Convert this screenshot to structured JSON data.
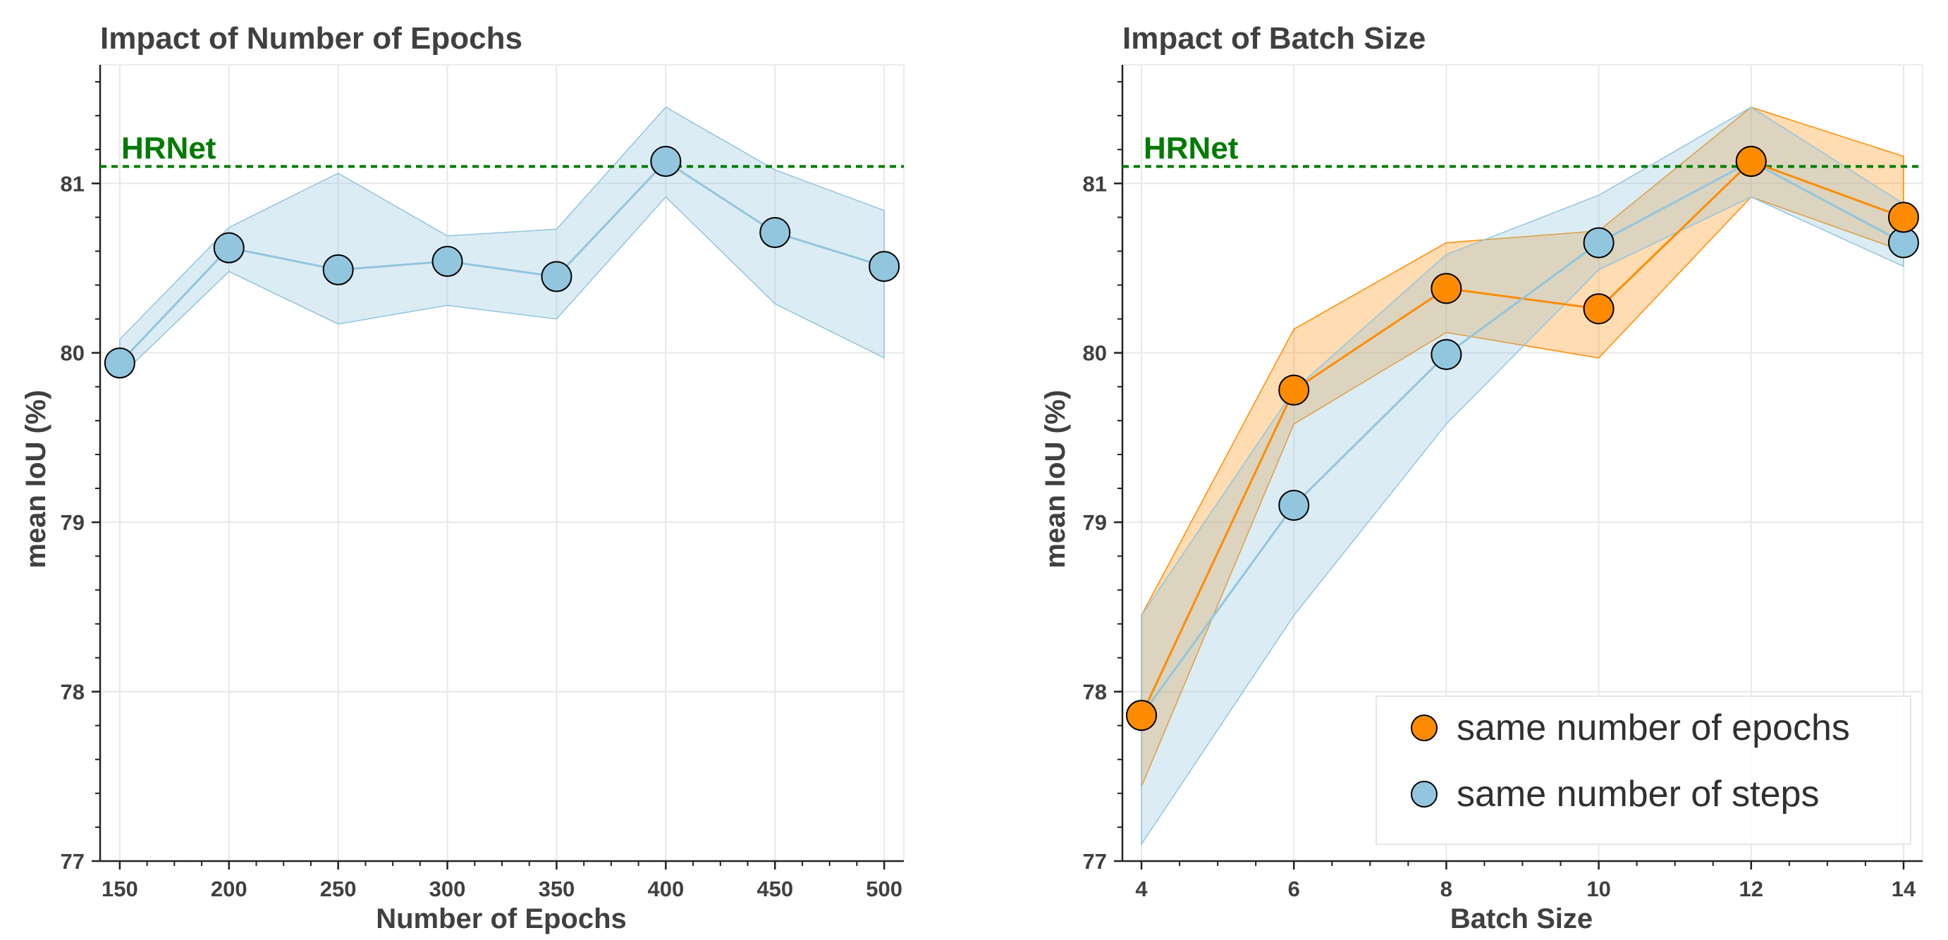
{
  "chart_data": [
    {
      "type": "line",
      "title": "Impact of Number of Epochs",
      "xlabel": "Number of Epochs",
      "ylabel": "mean IoU (%)",
      "xlim": [
        141,
        509
      ],
      "ylim": [
        77,
        81.7
      ],
      "xticks": [
        150,
        200,
        250,
        300,
        350,
        400,
        450,
        500
      ],
      "yticks": [
        77,
        78,
        79,
        80,
        81
      ],
      "reference_line": {
        "label": "HRNet",
        "value": 81.1,
        "color": "#008000"
      },
      "series": [
        {
          "name": "mean IoU",
          "color": "#92c5de",
          "x": [
            150,
            200,
            250,
            300,
            350,
            400,
            450,
            500
          ],
          "values": [
            79.94,
            80.62,
            80.49,
            80.54,
            80.45,
            81.13,
            80.71,
            80.51
          ],
          "upper": [
            80.08,
            80.74,
            81.06,
            80.69,
            80.73,
            81.45,
            81.08,
            80.84
          ],
          "lower": [
            79.86,
            80.48,
            80.17,
            80.28,
            80.2,
            80.92,
            80.29,
            79.97
          ]
        }
      ]
    },
    {
      "type": "line",
      "title": "Impact of Batch Size",
      "xlabel": "Batch Size",
      "ylabel": "mean IoU (%)",
      "xlim": [
        3.75,
        14.25
      ],
      "ylim": [
        77,
        81.7
      ],
      "xticks": [
        4,
        6,
        8,
        10,
        12,
        14
      ],
      "yticks": [
        77,
        78,
        79,
        80,
        81
      ],
      "reference_line": {
        "label": "HRNet",
        "value": 81.1,
        "color": "#008000"
      },
      "legend": "bottom-right",
      "series": [
        {
          "name": "same number of epochs",
          "color": "#ff8c00",
          "x": [
            4,
            6,
            8,
            10,
            12,
            14
          ],
          "values": [
            77.86,
            79.78,
            80.38,
            80.26,
            81.13,
            80.8
          ],
          "upper": [
            78.45,
            80.14,
            80.65,
            80.72,
            81.45,
            81.16
          ],
          "lower": [
            77.44,
            79.58,
            80.12,
            79.97,
            80.92,
            80.6
          ]
        },
        {
          "name": "same number of steps",
          "color": "#92c5de",
          "x": [
            4,
            6,
            8,
            10,
            12,
            14
          ],
          "values": [
            77.86,
            79.1,
            79.99,
            80.65,
            81.13,
            80.65
          ],
          "upper": [
            78.45,
            79.78,
            80.58,
            80.93,
            81.45,
            80.88
          ],
          "lower": [
            77.1,
            78.45,
            79.58,
            80.49,
            80.92,
            80.51
          ]
        }
      ]
    }
  ]
}
